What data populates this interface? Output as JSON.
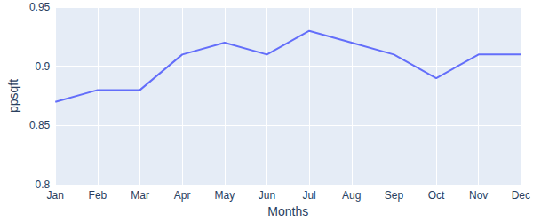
{
  "chart_data": {
    "type": "line",
    "x_label": "Months",
    "y_label": "ppsqft",
    "categories": [
      "Jan",
      "Feb",
      "Mar",
      "Apr",
      "May",
      "Jun",
      "Jul",
      "Aug",
      "Sep",
      "Oct",
      "Nov",
      "Dec"
    ],
    "values": [
      0.87,
      0.88,
      0.88,
      0.91,
      0.92,
      0.91,
      0.93,
      0.92,
      0.91,
      0.89,
      0.91,
      0.91
    ],
    "color": "#636efa",
    "ylim": [
      0.8,
      0.95
    ],
    "yticks": [
      0.8,
      0.85,
      0.9,
      0.95
    ],
    "grid": true
  }
}
